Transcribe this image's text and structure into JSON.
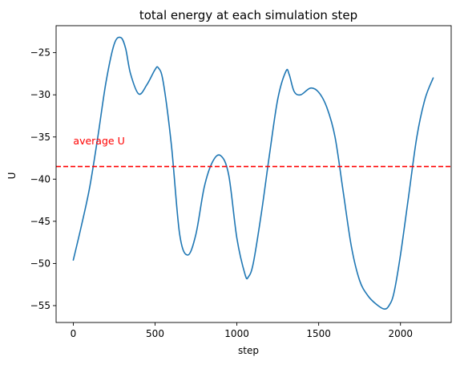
{
  "chart_data": {
    "type": "line",
    "title": "total energy at each simulation step",
    "xlabel": "step",
    "ylabel": "U",
    "xlim": [
      -105,
      2310
    ],
    "ylim": [
      -57.0,
      -21.8
    ],
    "xticks": [
      0,
      500,
      1000,
      1500,
      2000
    ],
    "yticks": [
      -55,
      -50,
      -45,
      -40,
      -35,
      -30,
      -25
    ],
    "xtick_labels": [
      "0",
      "500",
      "1000",
      "1500",
      "2000"
    ],
    "ytick_labels": [
      "−55",
      "−50",
      "−45",
      "−40",
      "−35",
      "−30",
      "−25"
    ],
    "grid": false,
    "series": [
      {
        "color": "#1f77b4",
        "x": [
          0,
          50,
          100,
          150,
          200,
          250,
          290,
          320,
          350,
          400,
          450,
          500,
          520,
          550,
          600,
          650,
          700,
          750,
          800,
          850,
          900,
          950,
          1000,
          1050,
          1070,
          1100,
          1150,
          1200,
          1250,
          1300,
          1320,
          1350,
          1390,
          1450,
          1500,
          1550,
          1600,
          1650,
          1700,
          1750,
          1800,
          1850,
          1900,
          1930,
          1960,
          2000,
          2050,
          2100,
          2150,
          2200
        ],
        "y": [
          -49.6,
          -45.5,
          -41.0,
          -35.0,
          -28.5,
          -24.0,
          -23.2,
          -24.5,
          -27.5,
          -29.9,
          -28.8,
          -27.0,
          -26.8,
          -28.5,
          -36.0,
          -46.5,
          -49.0,
          -46.5,
          -41.0,
          -38.0,
          -37.2,
          -39.5,
          -47.0,
          -51.3,
          -51.6,
          -50.0,
          -44.0,
          -37.0,
          -30.5,
          -27.2,
          -27.6,
          -29.6,
          -30.0,
          -29.2,
          -29.7,
          -31.5,
          -35.0,
          -41.5,
          -48.0,
          -52.0,
          -53.8,
          -54.8,
          -55.4,
          -55.0,
          -53.5,
          -49.0,
          -42.0,
          -35.0,
          -30.5,
          -28.0
        ]
      }
    ],
    "reference_line": {
      "y": -38.5,
      "color": "#ff0000",
      "style": "dashed"
    },
    "annotation": {
      "text": "average U",
      "x": 0,
      "y": -35.5,
      "color": "#ff0000"
    }
  }
}
